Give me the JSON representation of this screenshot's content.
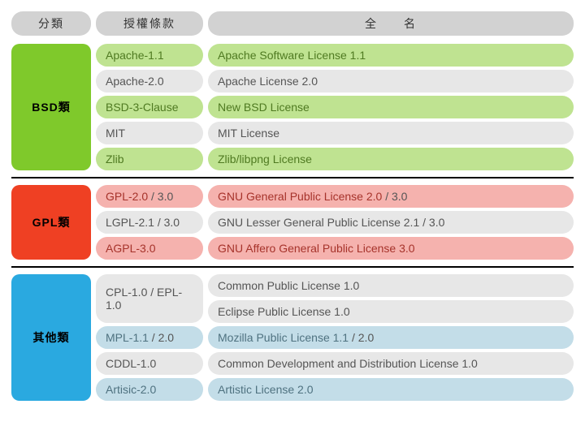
{
  "colors": {
    "header_bg": "#d2d2d2",
    "header_text": "#333333",
    "neutral_bg": "#e7e7e7",
    "neutral_text": "#555555",
    "bsd_cat_bg": "#7fc92b",
    "bsd_cat_text": "#000000",
    "bsd_row_bg": "#bfe391",
    "bsd_row_text": "#4f7a21",
    "gpl_cat_bg": "#ef4023",
    "gpl_cat_text": "#000000",
    "gpl_row_bg": "#f5b2ae",
    "gpl_row_text": "#a6332b",
    "other_cat_bg": "#2aa9e0",
    "other_cat_text": "#000000",
    "other_row_bg": "#c3dde8",
    "other_row_text": "#4f7280"
  },
  "headers": {
    "category": "分類",
    "code": "授權條款",
    "fullname": "全　　名"
  },
  "groups": [
    {
      "id": "bsd",
      "label": "BSD類",
      "cat_bg": "#7fc92b",
      "cat_text": "#000000",
      "hi_bg": "#bfe391",
      "hi_text": "#4f7a21",
      "rows": [
        {
          "code": "Apache-1.1",
          "full": "Apache Software License 1.1",
          "highlight": true
        },
        {
          "code": "Apache-2.0",
          "full": "Apache License 2.0",
          "highlight": false
        },
        {
          "code": "BSD-3-Clause",
          "full": "New BSD License",
          "highlight": true
        },
        {
          "code": "MIT",
          "full": "MIT License",
          "highlight": false
        },
        {
          "code": "Zlib",
          "full": "Zlib/libpng License",
          "highlight": true
        }
      ]
    },
    {
      "id": "gpl",
      "label": "GPL類",
      "cat_bg": "#ef4023",
      "cat_text": "#000000",
      "hi_bg": "#f5b2ae",
      "hi_text": "#a6332b",
      "rows": [
        {
          "code": "GPL-2.0",
          "code_suffix": " / 3.0",
          "full": "GNU General Public License 2.0",
          "full_suffix": " / 3.0",
          "highlight": true
        },
        {
          "code": "LGPL-2.1",
          "code_suffix": " / 3.0",
          "full": "GNU Lesser General Public License 2.1",
          "full_suffix": " / 3.0",
          "highlight": false
        },
        {
          "code": "AGPL-3.0",
          "full": "GNU Affero General Public License 3.0",
          "highlight": true
        }
      ]
    },
    {
      "id": "other",
      "label": "其他類",
      "cat_bg": "#2aa9e0",
      "cat_text": "#000000",
      "hi_bg": "#c3dde8",
      "hi_text": "#4f7280",
      "rows": [
        {
          "code": "CPL-1.0 / EPL-1.0",
          "full_stack": [
            "Common Public License 1.0",
            "Eclipse Public License 1.0"
          ],
          "highlight": false
        },
        {
          "code": "MPL-1.1",
          "code_suffix": " / 2.0",
          "full": "Mozilla Public License 1.1",
          "full_suffix": " / 2.0",
          "highlight": true
        },
        {
          "code": "CDDL-1.0",
          "full": "Common Development and Distribution License 1.0",
          "highlight": false
        },
        {
          "code": "Artisic-2.0",
          "full": "Artistic License 2.0",
          "highlight": true
        }
      ]
    }
  ]
}
